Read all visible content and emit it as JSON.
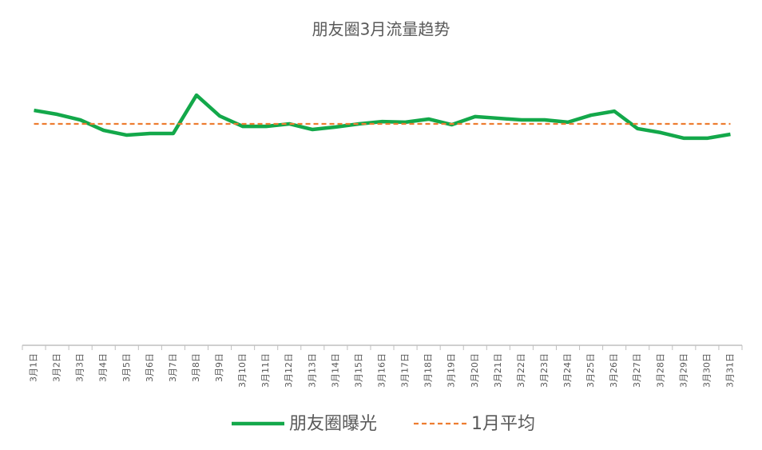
{
  "chart_data": {
    "type": "line",
    "title": "朋友圈3月流量趋势",
    "categories": [
      "3月1日",
      "3月2日",
      "3月3日",
      "3月4日",
      "3月5日",
      "3月6日",
      "3月7日",
      "3月8日",
      "3月9日",
      "3月10日",
      "3月11日",
      "3月12日",
      "3月13日",
      "3月14日",
      "3月15日",
      "3月16日",
      "3月17日",
      "3月18日",
      "3月19日",
      "3月20日",
      "3月21日",
      "3月22日",
      "3月23日",
      "3月24日",
      "3月25日",
      "3月26日",
      "3月27日",
      "3月28日",
      "3月29日",
      "3月30日",
      "3月31日"
    ],
    "series": [
      {
        "name": "朋友圈曝光",
        "color": "#13a84a",
        "line_style": "solid",
        "values": [
          83.5,
          82.1,
          80.1,
          76.4,
          74.7,
          75.3,
          75.3,
          88.9,
          81.5,
          77.8,
          77.8,
          78.7,
          76.7,
          77.6,
          78.7,
          79.5,
          79.3,
          80.4,
          78.4,
          81.3,
          80.7,
          80.1,
          80.1,
          79.3,
          81.8,
          83.2,
          77.0,
          75.6,
          73.6,
          73.6,
          75.0
        ]
      },
      {
        "name": "1月平均",
        "color": "#ed7d31",
        "line_style": "dashed",
        "values": [
          78.7,
          78.7,
          78.7,
          78.7,
          78.7,
          78.7,
          78.7,
          78.7,
          78.7,
          78.7,
          78.7,
          78.7,
          78.7,
          78.7,
          78.7,
          78.7,
          78.7,
          78.7,
          78.7,
          78.7,
          78.7,
          78.7,
          78.7,
          78.7,
          78.7,
          78.7,
          78.7,
          78.7,
          78.7,
          78.7,
          78.7
        ]
      }
    ],
    "ylim": [
      0,
      100
    ]
  }
}
